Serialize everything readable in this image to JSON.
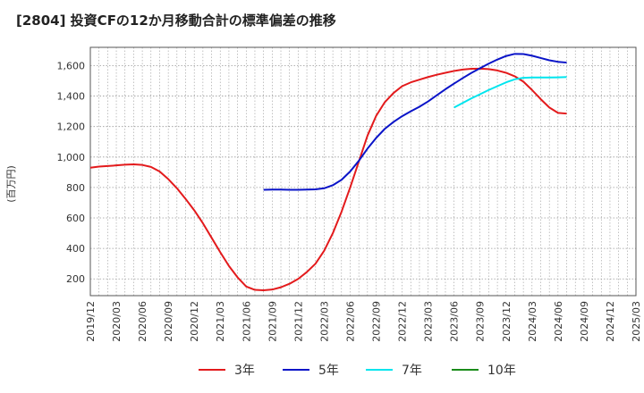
{
  "chart_data": {
    "type": "line",
    "title": "[2804]  投資CFの12か月移動合計の標準偏差の推移",
    "ylabel": "(百万円)",
    "xlabel": "",
    "ylim": [
      90,
      1720
    ],
    "yticks": [
      200,
      400,
      600,
      800,
      1000,
      1200,
      1400,
      1600
    ],
    "ytick_labels": [
      "200",
      "400",
      "600",
      "800",
      "1,000",
      "1,200",
      "1,400",
      "1,600"
    ],
    "xticks": [
      "2019/12",
      "2020/03",
      "2020/06",
      "2020/09",
      "2020/12",
      "2021/03",
      "2021/06",
      "2021/09",
      "2021/12",
      "2022/03",
      "2022/06",
      "2022/09",
      "2022/12",
      "2023/03",
      "2023/06",
      "2023/09",
      "2023/12",
      "2024/03",
      "2024/06",
      "2024/09",
      "2024/12",
      "2025/03"
    ],
    "grid": true,
    "legend_position": "bottom",
    "series": [
      {
        "name": "3年",
        "color": "#e31a1c",
        "points": [
          [
            "2019/12",
            930
          ],
          [
            "2020/01",
            937
          ],
          [
            "2020/02",
            941
          ],
          [
            "2020/03",
            945
          ],
          [
            "2020/04",
            950
          ],
          [
            "2020/05",
            952
          ],
          [
            "2020/06",
            948
          ],
          [
            "2020/07",
            935
          ],
          [
            "2020/08",
            905
          ],
          [
            "2020/09",
            855
          ],
          [
            "2020/10",
            795
          ],
          [
            "2020/11",
            725
          ],
          [
            "2020/12",
            650
          ],
          [
            "2021/01",
            565
          ],
          [
            "2021/02",
            470
          ],
          [
            "2021/03",
            375
          ],
          [
            "2021/04",
            285
          ],
          [
            "2021/05",
            210
          ],
          [
            "2021/06",
            150
          ],
          [
            "2021/07",
            128
          ],
          [
            "2021/08",
            125
          ],
          [
            "2021/09",
            130
          ],
          [
            "2021/10",
            145
          ],
          [
            "2021/11",
            168
          ],
          [
            "2021/12",
            200
          ],
          [
            "2022/01",
            245
          ],
          [
            "2022/02",
            300
          ],
          [
            "2022/03",
            385
          ],
          [
            "2022/04",
            500
          ],
          [
            "2022/05",
            640
          ],
          [
            "2022/06",
            800
          ],
          [
            "2022/07",
            970
          ],
          [
            "2022/08",
            1140
          ],
          [
            "2022/09",
            1270
          ],
          [
            "2022/10",
            1360
          ],
          [
            "2022/11",
            1420
          ],
          [
            "2022/12",
            1465
          ],
          [
            "2023/01",
            1490
          ],
          [
            "2023/02",
            1508
          ],
          [
            "2023/03",
            1525
          ],
          [
            "2023/04",
            1540
          ],
          [
            "2023/05",
            1553
          ],
          [
            "2023/06",
            1565
          ],
          [
            "2023/07",
            1574
          ],
          [
            "2023/08",
            1579
          ],
          [
            "2023/09",
            1580
          ],
          [
            "2023/10",
            1577
          ],
          [
            "2023/11",
            1568
          ],
          [
            "2023/12",
            1553
          ],
          [
            "2024/01",
            1530
          ],
          [
            "2024/02",
            1495
          ],
          [
            "2024/03",
            1440
          ],
          [
            "2024/04",
            1380
          ],
          [
            "2024/05",
            1325
          ],
          [
            "2024/06",
            1290
          ],
          [
            "2024/07",
            1285
          ]
        ]
      },
      {
        "name": "5年",
        "color": "#0a14c8",
        "points": [
          [
            "2021/08",
            785
          ],
          [
            "2021/09",
            786
          ],
          [
            "2021/10",
            786
          ],
          [
            "2021/11",
            785
          ],
          [
            "2021/12",
            785
          ],
          [
            "2022/01",
            786
          ],
          [
            "2022/02",
            788
          ],
          [
            "2022/03",
            795
          ],
          [
            "2022/04",
            815
          ],
          [
            "2022/05",
            850
          ],
          [
            "2022/06",
            905
          ],
          [
            "2022/07",
            975
          ],
          [
            "2022/08",
            1055
          ],
          [
            "2022/09",
            1125
          ],
          [
            "2022/10",
            1185
          ],
          [
            "2022/11",
            1230
          ],
          [
            "2022/12",
            1268
          ],
          [
            "2023/01",
            1300
          ],
          [
            "2023/02",
            1330
          ],
          [
            "2023/03",
            1365
          ],
          [
            "2023/04",
            1405
          ],
          [
            "2023/05",
            1445
          ],
          [
            "2023/06",
            1482
          ],
          [
            "2023/07",
            1518
          ],
          [
            "2023/08",
            1552
          ],
          [
            "2023/09",
            1583
          ],
          [
            "2023/10",
            1613
          ],
          [
            "2023/11",
            1640
          ],
          [
            "2023/12",
            1663
          ],
          [
            "2024/01",
            1677
          ],
          [
            "2024/02",
            1676
          ],
          [
            "2024/03",
            1665
          ],
          [
            "2024/04",
            1650
          ],
          [
            "2024/05",
            1635
          ],
          [
            "2024/06",
            1625
          ],
          [
            "2024/07",
            1620
          ]
        ]
      },
      {
        "name": "7年",
        "color": "#00e5ee",
        "points": [
          [
            "2023/06",
            1325
          ],
          [
            "2023/07",
            1355
          ],
          [
            "2023/08",
            1385
          ],
          [
            "2023/09",
            1412
          ],
          [
            "2023/10",
            1440
          ],
          [
            "2023/11",
            1465
          ],
          [
            "2023/12",
            1490
          ],
          [
            "2024/01",
            1510
          ],
          [
            "2024/02",
            1520
          ],
          [
            "2024/03",
            1522
          ],
          [
            "2024/04",
            1522
          ],
          [
            "2024/05",
            1522
          ],
          [
            "2024/06",
            1523
          ],
          [
            "2024/07",
            1525
          ]
        ]
      },
      {
        "name": "10年",
        "color": "#1a8c1a",
        "points": []
      }
    ]
  }
}
